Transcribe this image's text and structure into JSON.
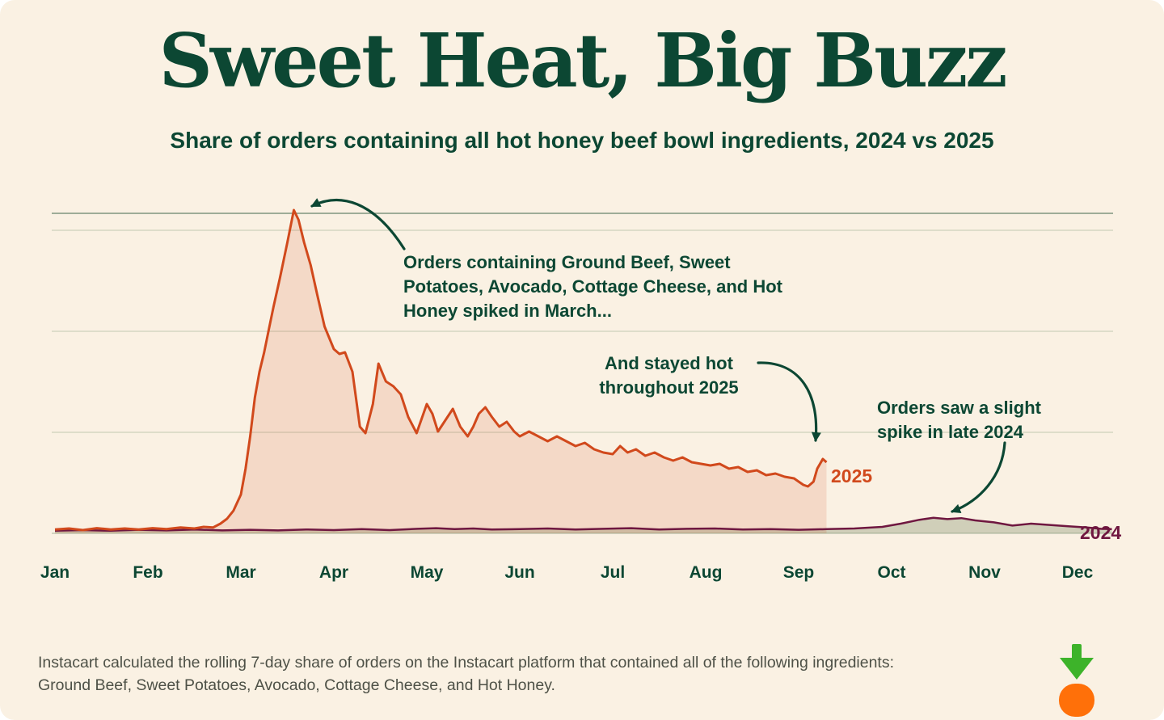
{
  "page": {
    "title": "Sweet Heat, Big Buzz",
    "subtitle": "Share of orders containing all hot honey beef bowl ingredients, 2024 vs 2025"
  },
  "annotations": {
    "march_spike": "Orders containing Ground Beef, Sweet Potatoes, Avocado, Cottage Cheese, and Hot Honey spiked in March...",
    "stayed_hot_line1": "And stayed hot",
    "stayed_hot_line2": "throughout 2025",
    "late_2024_line1": "Orders saw a slight",
    "late_2024_line2": "spike in late 2024"
  },
  "footnote": "Instacart calculated the rolling 7-day share of orders on the Instacart platform that contained all of the following ingredients: Ground Beef, Sweet Potatoes, Avocado, Cottage Cheese, and Hot Honey.",
  "colors": {
    "background": "#faf1e3",
    "brand_green": "#0c4733",
    "line_2025": "#d1491c",
    "fill_2025": "rgba(209,73,28,0.14)",
    "line_2024": "#6f1740",
    "fill_2024": "rgba(111,130,90,0.30)",
    "gridline": "#c2c9b2",
    "logo_green": "#3db32a",
    "logo_orange": "#ff7009"
  },
  "chart_data": {
    "type": "area",
    "title": "Sweet Heat, Big Buzz",
    "subtitle": "Share of orders containing all hot honey beef bowl ingredients, 2024 vs 2025",
    "categories": [
      "Jan",
      "Feb",
      "Mar",
      "Apr",
      "May",
      "Jun",
      "Jul",
      "Aug",
      "Sep",
      "Oct",
      "Nov",
      "Dec"
    ],
    "x_unit": "month index (0 = Jan ... 11 = Dec, fractional positions within month)",
    "ylim": [
      0,
      1.05
    ],
    "y_axis_note": "No y-axis tick labels shown; values indexed so the March 2025 peak = 1.0",
    "grid": "horizontal gridlines only",
    "legend_position": "inline labels at right end of each line",
    "series": [
      {
        "name": "2025",
        "color": "#d1491c",
        "fill": "rgba(209,73,28,0.14)",
        "x": [
          0,
          0.15,
          0.3,
          0.45,
          0.6,
          0.75,
          0.9,
          1.05,
          1.2,
          1.35,
          1.5,
          1.6,
          1.7,
          1.78,
          1.85,
          1.92,
          2.0,
          2.05,
          2.1,
          2.15,
          2.2,
          2.25,
          2.3,
          2.35,
          2.42,
          2.5,
          2.57,
          2.62,
          2.68,
          2.75,
          2.82,
          2.9,
          3.0,
          3.06,
          3.12,
          3.2,
          3.28,
          3.34,
          3.42,
          3.48,
          3.56,
          3.64,
          3.72,
          3.8,
          3.89,
          4.0,
          4.06,
          4.12,
          4.2,
          4.28,
          4.36,
          4.44,
          4.5,
          4.56,
          4.63,
          4.7,
          4.78,
          4.86,
          4.94,
          5.0,
          5.1,
          5.2,
          5.3,
          5.4,
          5.5,
          5.6,
          5.7,
          5.8,
          5.9,
          6.0,
          6.08,
          6.16,
          6.25,
          6.35,
          6.45,
          6.55,
          6.65,
          6.75,
          6.85,
          6.95,
          7.05,
          7.15,
          7.25,
          7.35,
          7.45,
          7.55,
          7.65,
          7.75,
          7.85,
          7.95,
          8.0,
          8.05,
          8.1,
          8.16,
          8.2,
          8.26,
          8.3
        ],
        "values": [
          0.012,
          0.015,
          0.01,
          0.016,
          0.012,
          0.015,
          0.012,
          0.016,
          0.013,
          0.018,
          0.015,
          0.02,
          0.018,
          0.03,
          0.045,
          0.07,
          0.12,
          0.2,
          0.3,
          0.42,
          0.5,
          0.56,
          0.63,
          0.7,
          0.79,
          0.9,
          1.0,
          0.97,
          0.9,
          0.83,
          0.74,
          0.64,
          0.57,
          0.555,
          0.56,
          0.5,
          0.33,
          0.31,
          0.4,
          0.525,
          0.47,
          0.455,
          0.43,
          0.36,
          0.31,
          0.4,
          0.37,
          0.315,
          0.35,
          0.385,
          0.33,
          0.3,
          0.33,
          0.37,
          0.39,
          0.36,
          0.33,
          0.345,
          0.315,
          0.3,
          0.315,
          0.3,
          0.285,
          0.3,
          0.285,
          0.27,
          0.28,
          0.26,
          0.25,
          0.245,
          0.27,
          0.25,
          0.26,
          0.24,
          0.25,
          0.235,
          0.225,
          0.235,
          0.22,
          0.215,
          0.21,
          0.215,
          0.2,
          0.205,
          0.19,
          0.195,
          0.18,
          0.185,
          0.175,
          0.17,
          0.16,
          0.15,
          0.145,
          0.16,
          0.2,
          0.23,
          0.22
        ]
      },
      {
        "name": "2024",
        "color": "#6f1740",
        "fill": "rgba(111,130,90,0.30)",
        "x": [
          0,
          0.3,
          0.6,
          0.9,
          1.2,
          1.5,
          1.8,
          2.1,
          2.4,
          2.7,
          3.0,
          3.3,
          3.6,
          3.9,
          4.1,
          4.3,
          4.5,
          4.7,
          5.0,
          5.3,
          5.6,
          5.9,
          6.2,
          6.5,
          6.8,
          7.1,
          7.4,
          7.7,
          8.0,
          8.3,
          8.6,
          8.9,
          9.1,
          9.3,
          9.45,
          9.6,
          9.75,
          9.9,
          10.1,
          10.3,
          10.5,
          10.7,
          10.9,
          11.1,
          11.25,
          11.37
        ],
        "values": [
          0.008,
          0.01,
          0.008,
          0.011,
          0.009,
          0.012,
          0.009,
          0.011,
          0.009,
          0.012,
          0.01,
          0.013,
          0.01,
          0.014,
          0.016,
          0.013,
          0.015,
          0.012,
          0.013,
          0.015,
          0.012,
          0.014,
          0.016,
          0.012,
          0.014,
          0.015,
          0.012,
          0.013,
          0.011,
          0.013,
          0.015,
          0.02,
          0.03,
          0.042,
          0.048,
          0.044,
          0.047,
          0.04,
          0.034,
          0.024,
          0.03,
          0.026,
          0.022,
          0.018,
          0.014,
          0.013
        ]
      }
    ]
  }
}
